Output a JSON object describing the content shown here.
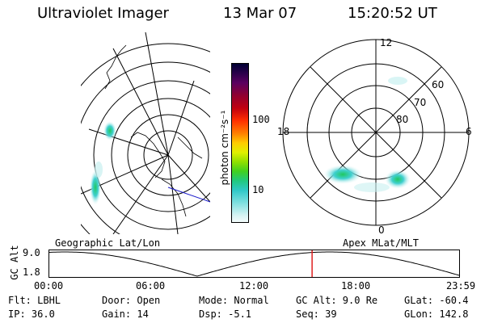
{
  "header": {
    "title": "Ultraviolet Imager",
    "date": "13 Mar 07",
    "time": "15:20:52 UT"
  },
  "colorbar": {
    "label": "photon cm⁻²s⁻¹",
    "ticks": [
      "100",
      "10"
    ],
    "colors": [
      "#000033",
      "#1a0040",
      "#400060",
      "#7a0040",
      "#b0001a",
      "#d01010",
      "#ff3000",
      "#ff7000",
      "#ffaa00",
      "#ffe000",
      "#d8f000",
      "#90e000",
      "#40d020",
      "#20c860",
      "#20c0a0",
      "#40d0d0",
      "#80e0e0",
      "#c0f0f0",
      "#eef8f8"
    ]
  },
  "geo_panel": {
    "label": "Geographic Lat/Lon"
  },
  "mag_panel": {
    "label": "Apex MLat/MLT",
    "mlt_labels": {
      "top": "12",
      "left": "18",
      "right": "6",
      "bottom": "0"
    },
    "lat_labels": [
      "60",
      "70",
      "80"
    ]
  },
  "altitude_plot": {
    "ylabel": "GC Alt",
    "y_ticks": [
      "9.0",
      "1.8"
    ],
    "x_ticks": [
      "00:00",
      "06:00",
      "12:00",
      "18:00",
      "23:59"
    ],
    "current_time_fraction": 0.64
  },
  "status": {
    "flt": "Flt: LBHL",
    "door": "Door: Open",
    "mode": "Mode: Normal",
    "gc_alt": "GC Alt: 9.0 Re",
    "glat": "GLat: -60.4",
    "ip": "IP: 36.0",
    "gain": "Gain: 14",
    "dsp": "Dsp:   -5.1",
    "seq": "Seq: 39",
    "glon": "GLon: 142.8"
  }
}
